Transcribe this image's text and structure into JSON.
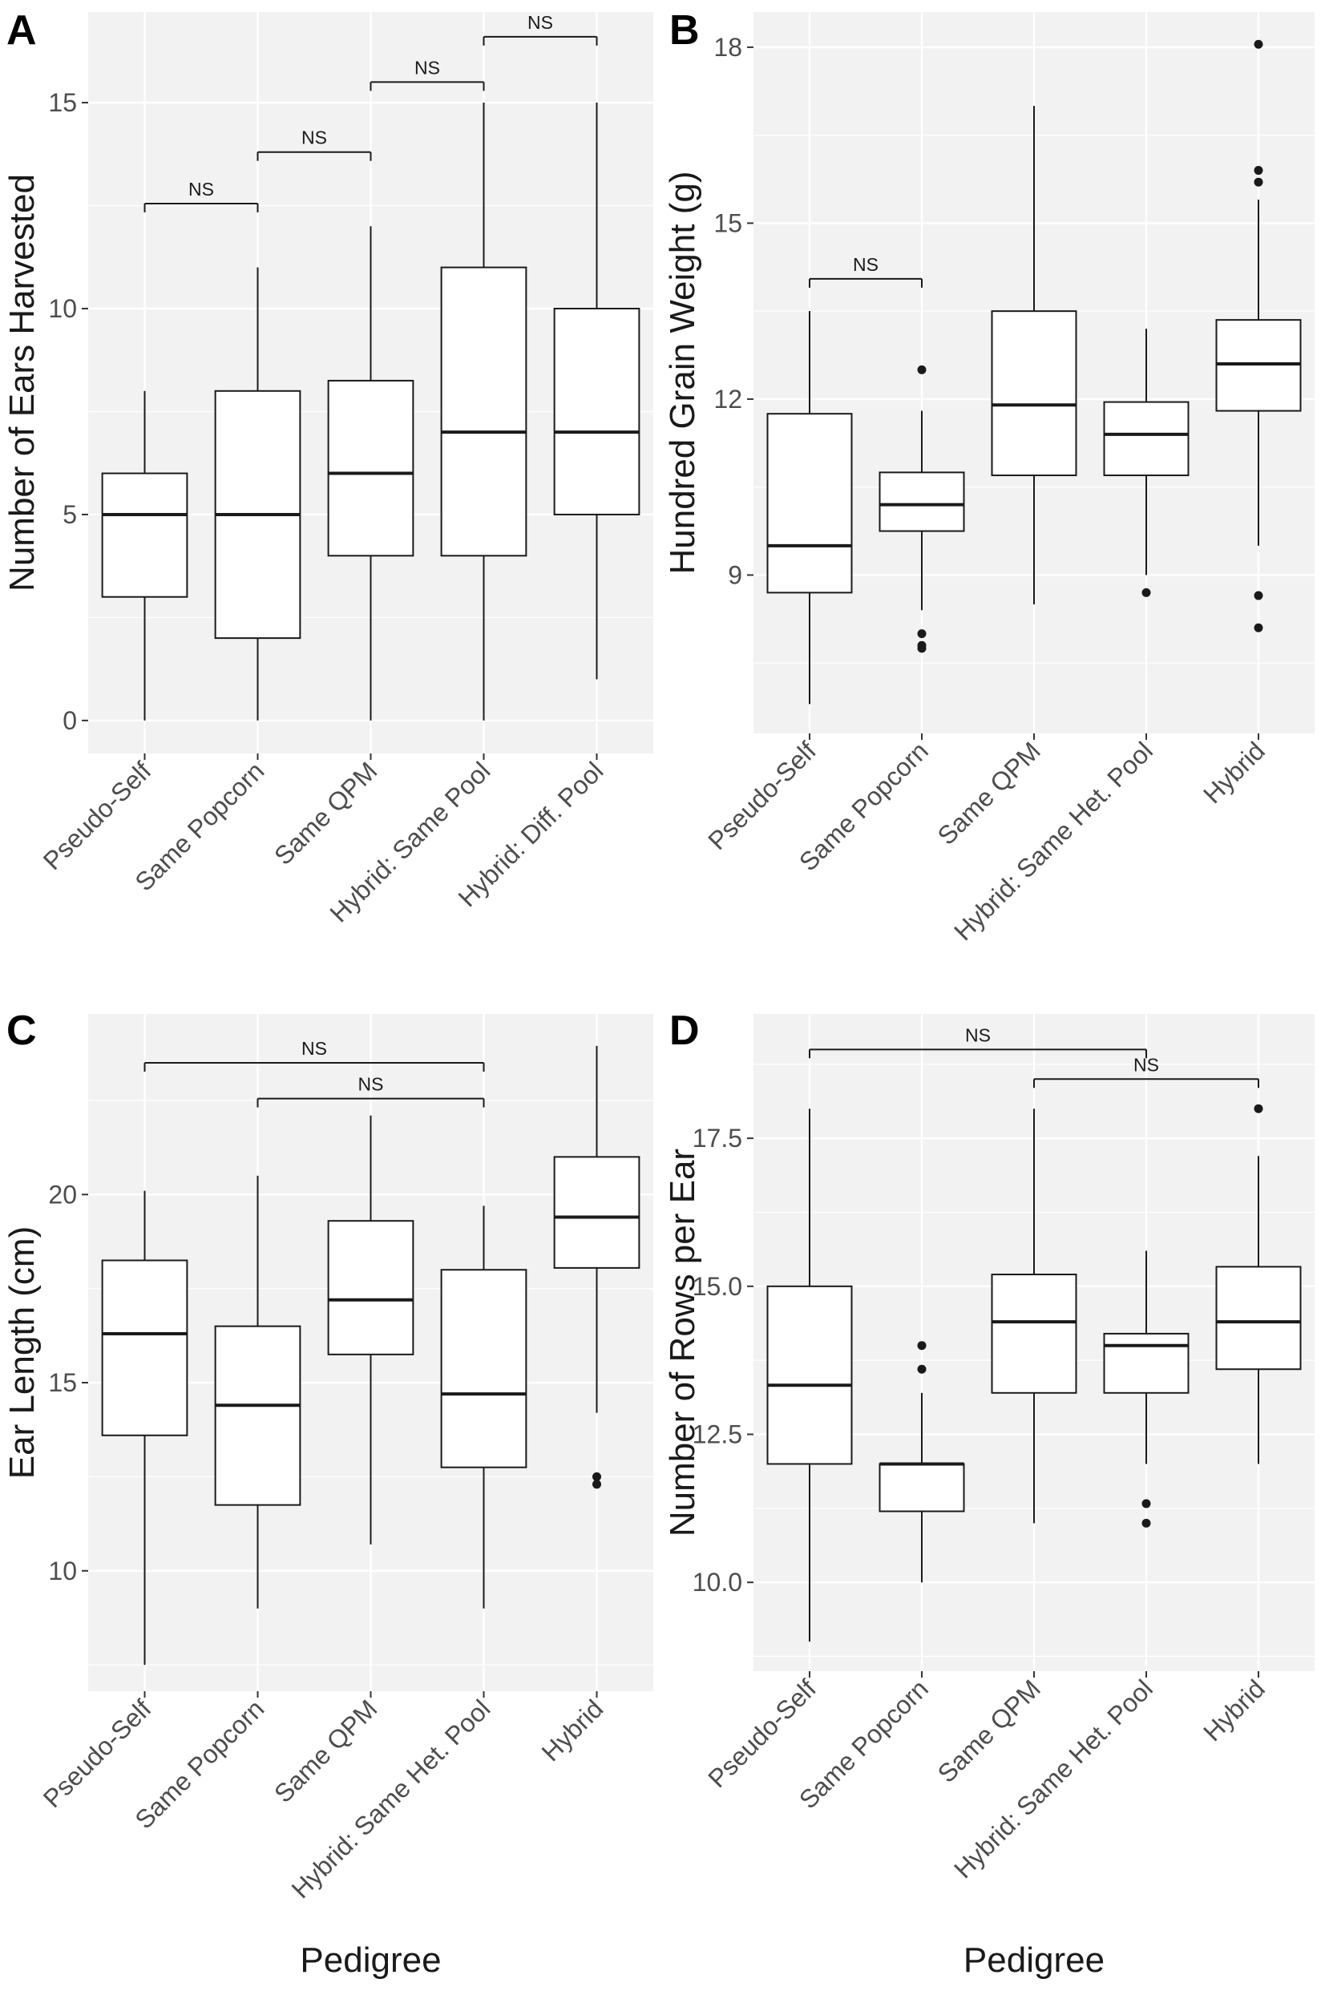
{
  "chart_data": [
    {
      "type": "box",
      "panel_label": "A",
      "ylabel": "Number of Ears Harvested",
      "xlabel": "",
      "ylim": [
        -0.8,
        17.2
      ],
      "yticks": [
        "0",
        "5",
        "10",
        "15"
      ],
      "tick_values": [
        0,
        5,
        10,
        15
      ],
      "categories": [
        "Pseudo-Self",
        "Same Popcorn",
        "Same QPM",
        "Hybrid: Same Pool",
        "Hybrid: Diff. Pool"
      ],
      "boxes": [
        {
          "whisker_low": 0,
          "q1": 3,
          "median": 5,
          "q3": 6,
          "whisker_high": 8,
          "outliers": []
        },
        {
          "whisker_low": 0,
          "q1": 2,
          "median": 5,
          "q3": 8,
          "whisker_high": 11,
          "outliers": []
        },
        {
          "whisker_low": 0,
          "q1": 4,
          "median": 6,
          "q3": 8.25,
          "whisker_high": 12,
          "outliers": []
        },
        {
          "whisker_low": 0,
          "q1": 4,
          "median": 7,
          "q3": 11,
          "whisker_high": 15,
          "outliers": []
        },
        {
          "whisker_low": 1,
          "q1": 5,
          "median": 7,
          "q3": 10,
          "whisker_high": 15,
          "outliers": []
        }
      ],
      "annotations": [
        {
          "from": 0,
          "to": 1,
          "y": 12.55,
          "text": "NS"
        },
        {
          "from": 1,
          "to": 2,
          "y": 13.8,
          "text": "NS"
        },
        {
          "from": 2,
          "to": 3,
          "y": 15.5,
          "text": "NS"
        },
        {
          "from": 3,
          "to": 4,
          "y": 16.6,
          "text": "NS"
        }
      ]
    },
    {
      "type": "box",
      "panel_label": "B",
      "ylabel": "Hundred Grain Weight (g)",
      "xlabel": "",
      "ylim": [
        6.3,
        18.6
      ],
      "yticks": [
        "9",
        "12",
        "15",
        "18"
      ],
      "tick_values": [
        9,
        12,
        15,
        18
      ],
      "categories": [
        "Pseudo-Self",
        "Same Popcorn",
        "Same QPM",
        "Hybrid: Same Het. Pool",
        "Hybrid"
      ],
      "boxes": [
        {
          "whisker_low": 6.8,
          "q1": 8.7,
          "median": 9.5,
          "q3": 11.75,
          "whisker_high": 13.5,
          "outliers": []
        },
        {
          "whisker_low": 8.4,
          "q1": 9.75,
          "median": 10.2,
          "q3": 10.75,
          "whisker_high": 11.8,
          "outliers": [
            12.5,
            8.0,
            7.8,
            7.75
          ]
        },
        {
          "whisker_low": 8.5,
          "q1": 10.7,
          "median": 11.9,
          "q3": 13.5,
          "whisker_high": 17.0,
          "outliers": []
        },
        {
          "whisker_low": 9.0,
          "q1": 10.7,
          "median": 11.4,
          "q3": 11.95,
          "whisker_high": 13.2,
          "outliers": [
            8.7
          ]
        },
        {
          "whisker_low": 9.5,
          "q1": 11.8,
          "median": 12.6,
          "q3": 13.35,
          "whisker_high": 15.4,
          "outliers": [
            18.05,
            15.9,
            15.7,
            8.65,
            8.1
          ]
        }
      ],
      "annotations": [
        {
          "from": 0,
          "to": 1,
          "y": 14.05,
          "text": "NS"
        }
      ]
    },
    {
      "type": "box",
      "panel_label": "C",
      "ylabel": "Ear Length (cm)",
      "xlabel": "Pedigree",
      "ylim": [
        6.8,
        24.8
      ],
      "yticks": [
        "10",
        "15",
        "20"
      ],
      "tick_values": [
        10,
        15,
        20
      ],
      "categories": [
        "Pseudo-Self",
        "Same Popcorn",
        "Same QPM",
        "Hybrid: Same Het. Pool",
        "Hybrid"
      ],
      "boxes": [
        {
          "whisker_low": 7.5,
          "q1": 13.6,
          "median": 16.3,
          "q3": 18.25,
          "whisker_high": 20.1,
          "outliers": []
        },
        {
          "whisker_low": 9.0,
          "q1": 11.75,
          "median": 14.4,
          "q3": 16.5,
          "whisker_high": 20.5,
          "outliers": []
        },
        {
          "whisker_low": 10.7,
          "q1": 15.75,
          "median": 17.2,
          "q3": 19.3,
          "whisker_high": 22.1,
          "outliers": []
        },
        {
          "whisker_low": 9.0,
          "q1": 12.75,
          "median": 14.7,
          "q3": 18.0,
          "whisker_high": 19.7,
          "outliers": []
        },
        {
          "whisker_low": 14.2,
          "q1": 18.05,
          "median": 19.4,
          "q3": 21.0,
          "whisker_high": 23.95,
          "outliers": [
            12.5,
            12.3
          ]
        }
      ],
      "annotations": [
        {
          "from": 0,
          "to": 3,
          "y": 23.5,
          "text": "NS"
        },
        {
          "from": 1,
          "to": 3,
          "y": 22.55,
          "text": "NS"
        }
      ]
    },
    {
      "type": "box",
      "panel_label": "D",
      "ylabel": "Number of Rows per Ear",
      "xlabel": "Pedigree",
      "ylim": [
        8.5,
        19.6
      ],
      "yticks": [
        "10.0",
        "12.5",
        "15.0",
        "17.5"
      ],
      "tick_values": [
        10.0,
        12.5,
        15.0,
        17.5
      ],
      "categories": [
        "Pseudo-Self",
        "Same Popcorn",
        "Same QPM",
        "Hybrid: Same Het. Pool",
        "Hybrid"
      ],
      "boxes": [
        {
          "whisker_low": 9.0,
          "q1": 12.0,
          "median": 13.33,
          "q3": 15.0,
          "whisker_high": 18.0,
          "outliers": []
        },
        {
          "whisker_low": 10.0,
          "q1": 11.2,
          "median": 12.0,
          "q3": 12.0,
          "whisker_high": 13.2,
          "outliers": [
            14.0,
            13.6
          ]
        },
        {
          "whisker_low": 11.0,
          "q1": 13.2,
          "median": 14.4,
          "q3": 15.2,
          "whisker_high": 18.0,
          "outliers": []
        },
        {
          "whisker_low": 12.0,
          "q1": 13.2,
          "median": 14.0,
          "q3": 14.2,
          "whisker_high": 15.6,
          "outliers": [
            11.33,
            11.0
          ]
        },
        {
          "whisker_low": 12.0,
          "q1": 13.6,
          "median": 14.4,
          "q3": 15.33,
          "whisker_high": 17.2,
          "outliers": [
            18.0
          ]
        }
      ],
      "annotations": [
        {
          "from": 0,
          "to": 3,
          "y": 19.0,
          "text": "NS"
        },
        {
          "from": 2,
          "to": 4,
          "y": 18.5,
          "text": "NS"
        }
      ]
    }
  ],
  "colors": {
    "panel_bg": "#f2f2f2",
    "grid": "#ffffff",
    "box_fill": "#ffffff",
    "stroke": "#1a1a1a",
    "tick_text": "#4d4d4d"
  }
}
